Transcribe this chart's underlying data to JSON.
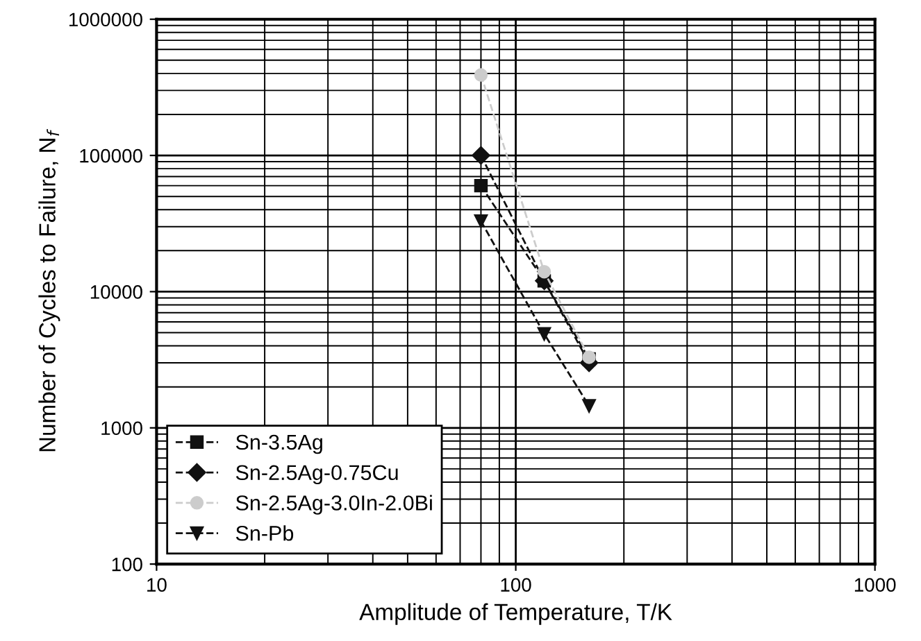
{
  "chart_data": {
    "type": "line",
    "xlabel": "Amplitude of Temperature, T/K",
    "ylabel": "Number of Cycles to Failure, N$_{f}$",
    "log": "xy",
    "xlim": [
      10,
      1000
    ],
    "xticks": [
      10,
      100,
      1000
    ],
    "ylim": [
      100,
      1000000
    ],
    "yticks": [
      100,
      1000,
      10000,
      100000,
      1000000
    ],
    "grid": true,
    "legend": "bottom left",
    "line_style": "dashed",
    "series": [
      {
        "name": "Sn-3.5Ag",
        "color": "#111111",
        "marker": "square",
        "x": [
          80,
          120,
          160
        ],
        "values": [
          60000,
          12000,
          3200
        ]
      },
      {
        "name": "Sn-2.5Ag-0.75Cu",
        "color": "#111111",
        "marker": "diamond",
        "x": [
          80,
          120,
          160
        ],
        "values": [
          100000,
          12000,
          3000
        ]
      },
      {
        "name": "Sn-2.5Ag-3.0In-2.0Bi",
        "color": "#cccccc",
        "marker": "circle",
        "x": [
          80,
          120,
          160
        ],
        "values": [
          390000,
          14000,
          3300
        ]
      },
      {
        "name": "Sn-Pb",
        "color": "#111111",
        "marker": "triangle",
        "x": [
          80,
          120,
          160
        ],
        "values": [
          33000,
          4900,
          1450
        ]
      }
    ]
  }
}
